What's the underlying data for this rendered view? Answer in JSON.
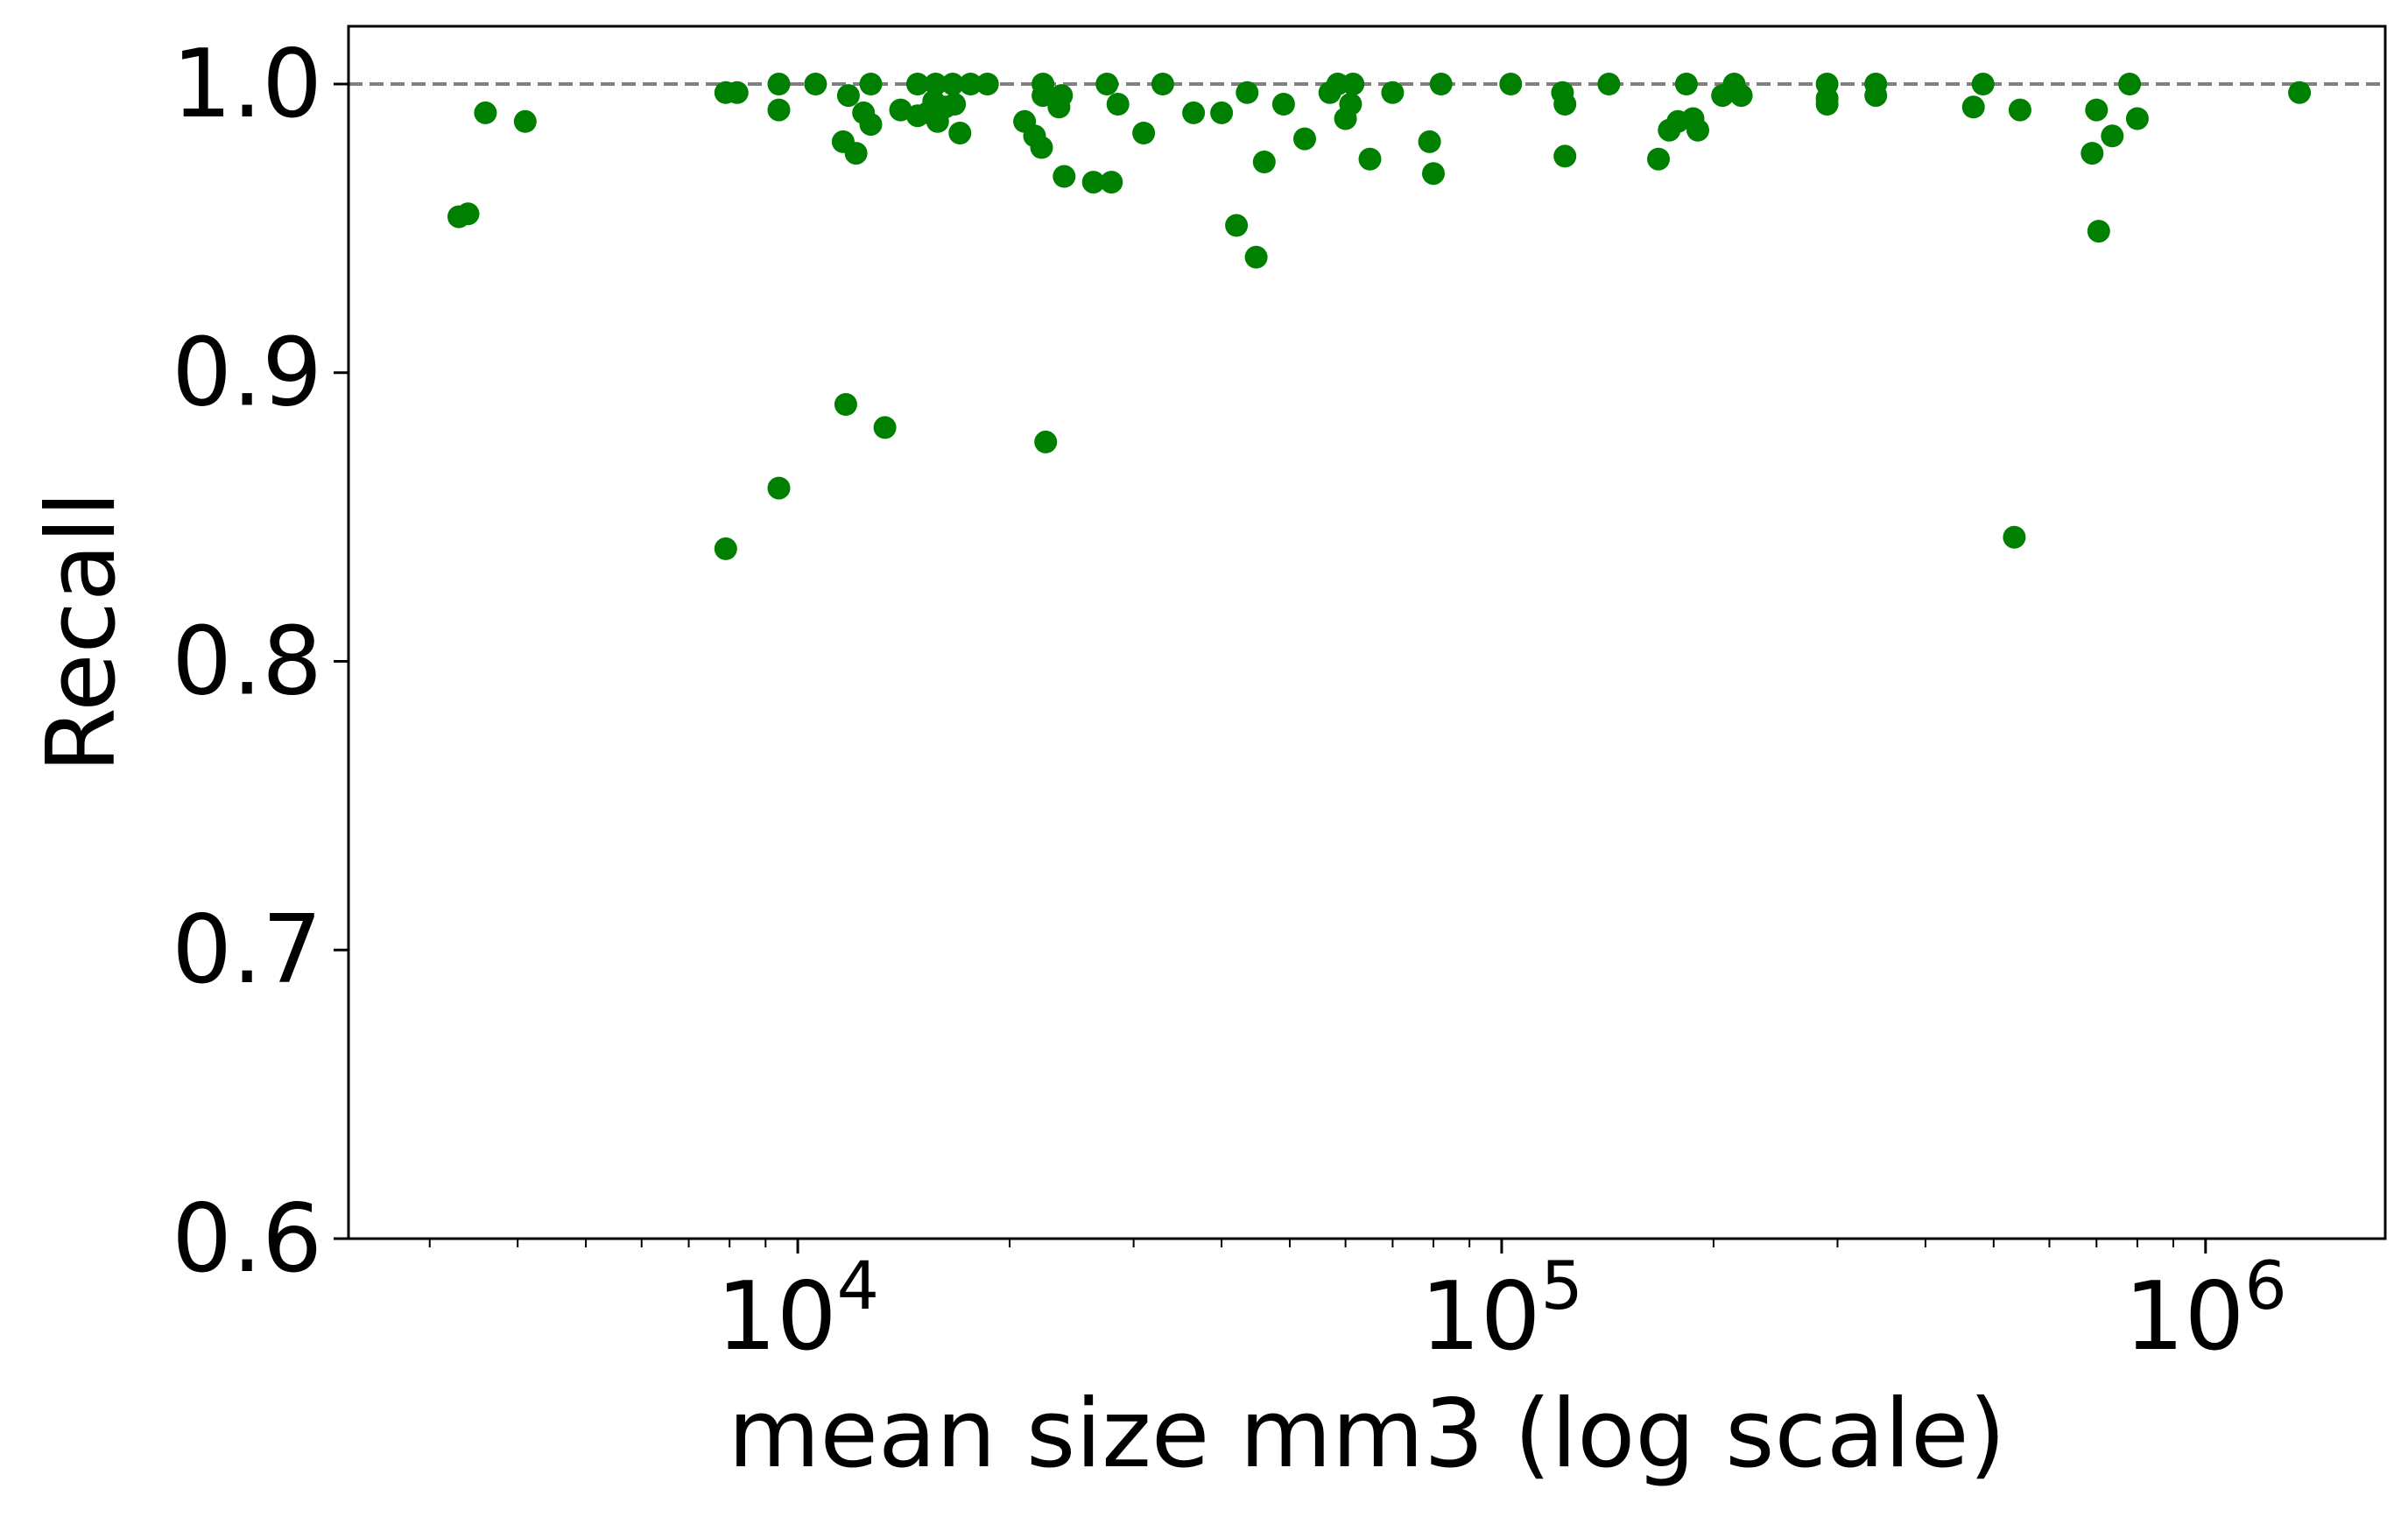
{
  "chart_data": {
    "type": "scatter",
    "title": "",
    "xlabel": "mean size mm3 (log scale)",
    "ylabel": "Recall",
    "x_scale": "log",
    "xlim": [
      2300,
      1800000
    ],
    "ylim": [
      0.6,
      1.02
    ],
    "grid": false,
    "x_ticks": [
      {
        "value": 10000,
        "base": "10",
        "exp": "4"
      },
      {
        "value": 100000,
        "base": "10",
        "exp": "5"
      },
      {
        "value": 1000000,
        "base": "10",
        "exp": "6"
      }
    ],
    "y_ticks": [
      {
        "value": 0.6,
        "label": "0.6"
      },
      {
        "value": 0.7,
        "label": "0.7"
      },
      {
        "value": 0.8,
        "label": "0.8"
      },
      {
        "value": 0.9,
        "label": "0.9"
      },
      {
        "value": 1.0,
        "label": "1.0"
      }
    ],
    "reference_line": {
      "y": 1.0,
      "style": "dashed",
      "color": "#808080"
    },
    "point_color": "#008000",
    "points": [
      [
        3300,
        0.954
      ],
      [
        3400,
        0.955
      ],
      [
        3600,
        0.99
      ],
      [
        4100,
        0.987
      ],
      [
        7900,
        0.997
      ],
      [
        8200,
        0.997
      ],
      [
        9400,
        1.0
      ],
      [
        9400,
        0.991
      ],
      [
        7900,
        0.839
      ],
      [
        9400,
        0.86
      ],
      [
        10600,
        1.0
      ],
      [
        11600,
        0.98
      ],
      [
        11800,
        0.996
      ],
      [
        12100,
        0.976
      ],
      [
        12400,
        0.99
      ],
      [
        12700,
        0.986
      ],
      [
        12700,
        1.0
      ],
      [
        11700,
        0.889
      ],
      [
        13300,
        0.881
      ],
      [
        14000,
        0.991
      ],
      [
        14800,
        0.989
      ],
      [
        14800,
        1.0
      ],
      [
        15300,
        0.99
      ],
      [
        15600,
        0.994
      ],
      [
        15700,
        1.0
      ],
      [
        15800,
        0.987
      ],
      [
        16200,
        0.992
      ],
      [
        16600,
        1.0
      ],
      [
        16700,
        0.993
      ],
      [
        17000,
        0.983
      ],
      [
        17600,
        1.0
      ],
      [
        18600,
        1.0
      ],
      [
        21000,
        0.987
      ],
      [
        21700,
        0.982
      ],
      [
        22200,
        0.978
      ],
      [
        22300,
        1.0
      ],
      [
        22300,
        0.996
      ],
      [
        22500,
        0.876
      ],
      [
        23500,
        0.992
      ],
      [
        23700,
        0.996
      ],
      [
        23900,
        0.968
      ],
      [
        26300,
        0.966
      ],
      [
        27500,
        1.0
      ],
      [
        27900,
        0.966
      ],
      [
        28500,
        0.993
      ],
      [
        31000,
        0.983
      ],
      [
        33000,
        1.0
      ],
      [
        36500,
        0.99
      ],
      [
        40000,
        0.99
      ],
      [
        42000,
        0.951
      ],
      [
        43500,
        0.997
      ],
      [
        44800,
        0.94
      ],
      [
        46000,
        0.973
      ],
      [
        49000,
        0.993
      ],
      [
        52500,
        0.981
      ],
      [
        57000,
        0.997
      ],
      [
        58500,
        1.0
      ],
      [
        60000,
        0.988
      ],
      [
        61000,
        0.993
      ],
      [
        61500,
        1.0
      ],
      [
        65000,
        0.974
      ],
      [
        70000,
        0.997
      ],
      [
        79000,
        0.98
      ],
      [
        80000,
        0.969
      ],
      [
        82000,
        1.0
      ],
      [
        103000,
        1.0
      ],
      [
        122000,
        0.997
      ],
      [
        123000,
        0.993
      ],
      [
        123000,
        0.975
      ],
      [
        142000,
        1.0
      ],
      [
        167000,
        0.974
      ],
      [
        173000,
        0.984
      ],
      [
        178000,
        0.987
      ],
      [
        183000,
        1.0
      ],
      [
        187000,
        0.988
      ],
      [
        190000,
        0.984
      ],
      [
        206000,
        0.996
      ],
      [
        214000,
        1.0
      ],
      [
        219000,
        0.996
      ],
      [
        290000,
        1.0
      ],
      [
        290000,
        0.993
      ],
      [
        290000,
        0.995
      ],
      [
        340000,
        1.0
      ],
      [
        340000,
        0.996
      ],
      [
        468000,
        0.992
      ],
      [
        483000,
        1.0
      ],
      [
        535000,
        0.843
      ],
      [
        545000,
        0.991
      ],
      [
        690000,
        0.976
      ],
      [
        700000,
        0.991
      ],
      [
        705000,
        0.949
      ],
      [
        737000,
        0.982
      ],
      [
        780000,
        1.0
      ],
      [
        800000,
        0.988
      ],
      [
        1360000,
        0.997
      ]
    ]
  }
}
